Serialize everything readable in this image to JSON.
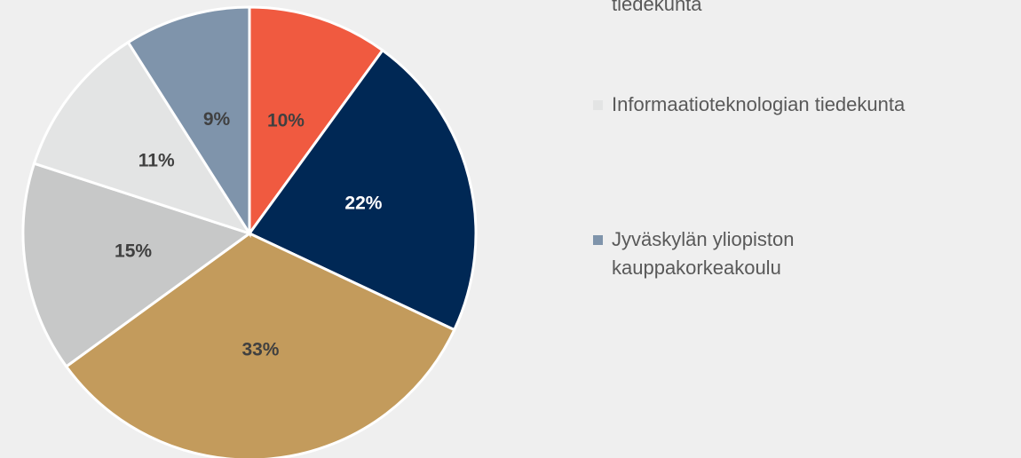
{
  "chart_data": {
    "type": "pie",
    "categories": [
      null,
      null,
      null,
      "tiedekunta",
      "Informaatioteknologian tiedekunta",
      "Jyväskylän yliopiston kauppakorkeakoulu"
    ],
    "values": [
      10,
      22,
      33,
      15,
      11,
      9
    ],
    "value_labels": [
      "10%",
      "22%",
      "33%",
      "15%",
      "11%",
      "9%"
    ],
    "colors": [
      "#f05a40",
      "#002855",
      "#c39b5c",
      "#c7c8c8",
      "#e3e4e4",
      "#7f94ab"
    ]
  }
}
